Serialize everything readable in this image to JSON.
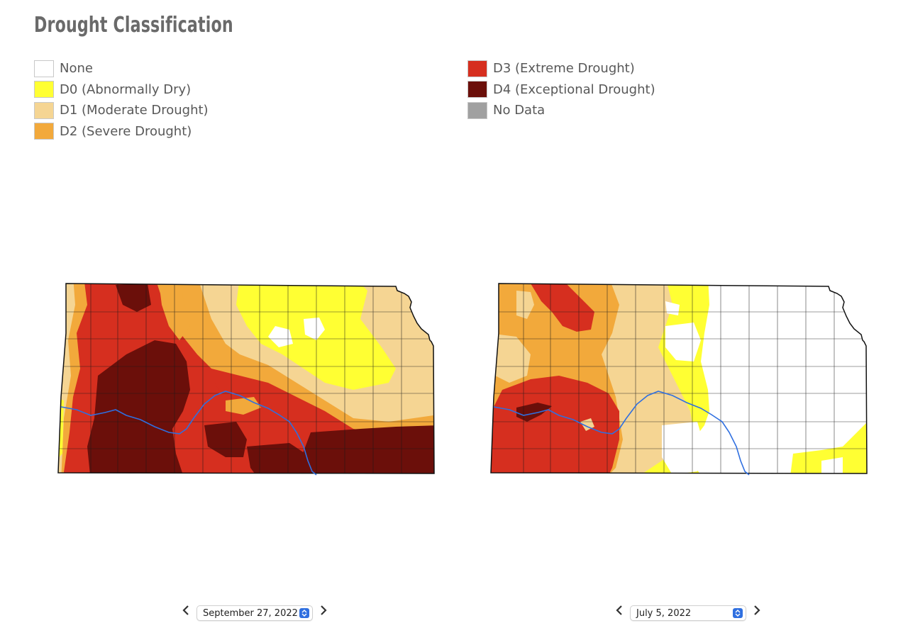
{
  "title": "Drought Classification",
  "legend": {
    "left": [
      {
        "label": "None",
        "color": "#ffffff"
      },
      {
        "label": "D0 (Abnormally Dry)",
        "color": "#ffff33"
      },
      {
        "label": "D1 (Moderate Drought)",
        "color": "#f5d593"
      },
      {
        "label": "D2 (Severe Drought)",
        "color": "#f2a93b"
      }
    ],
    "right": [
      {
        "label": "D3 (Extreme Drought)",
        "color": "#d62f1f"
      },
      {
        "label": "D4 (Exceptional Drought)",
        "color": "#6b0f0a"
      },
      {
        "label": "No Data",
        "color": "#a0a0a0"
      }
    ]
  },
  "maps": [
    {
      "date": "September 27, 2022"
    },
    {
      "date": "July 5, 2022"
    }
  ],
  "icons": {
    "prev": "chevron-left-icon",
    "next": "chevron-right-icon",
    "select": "select-arrows-icon"
  }
}
